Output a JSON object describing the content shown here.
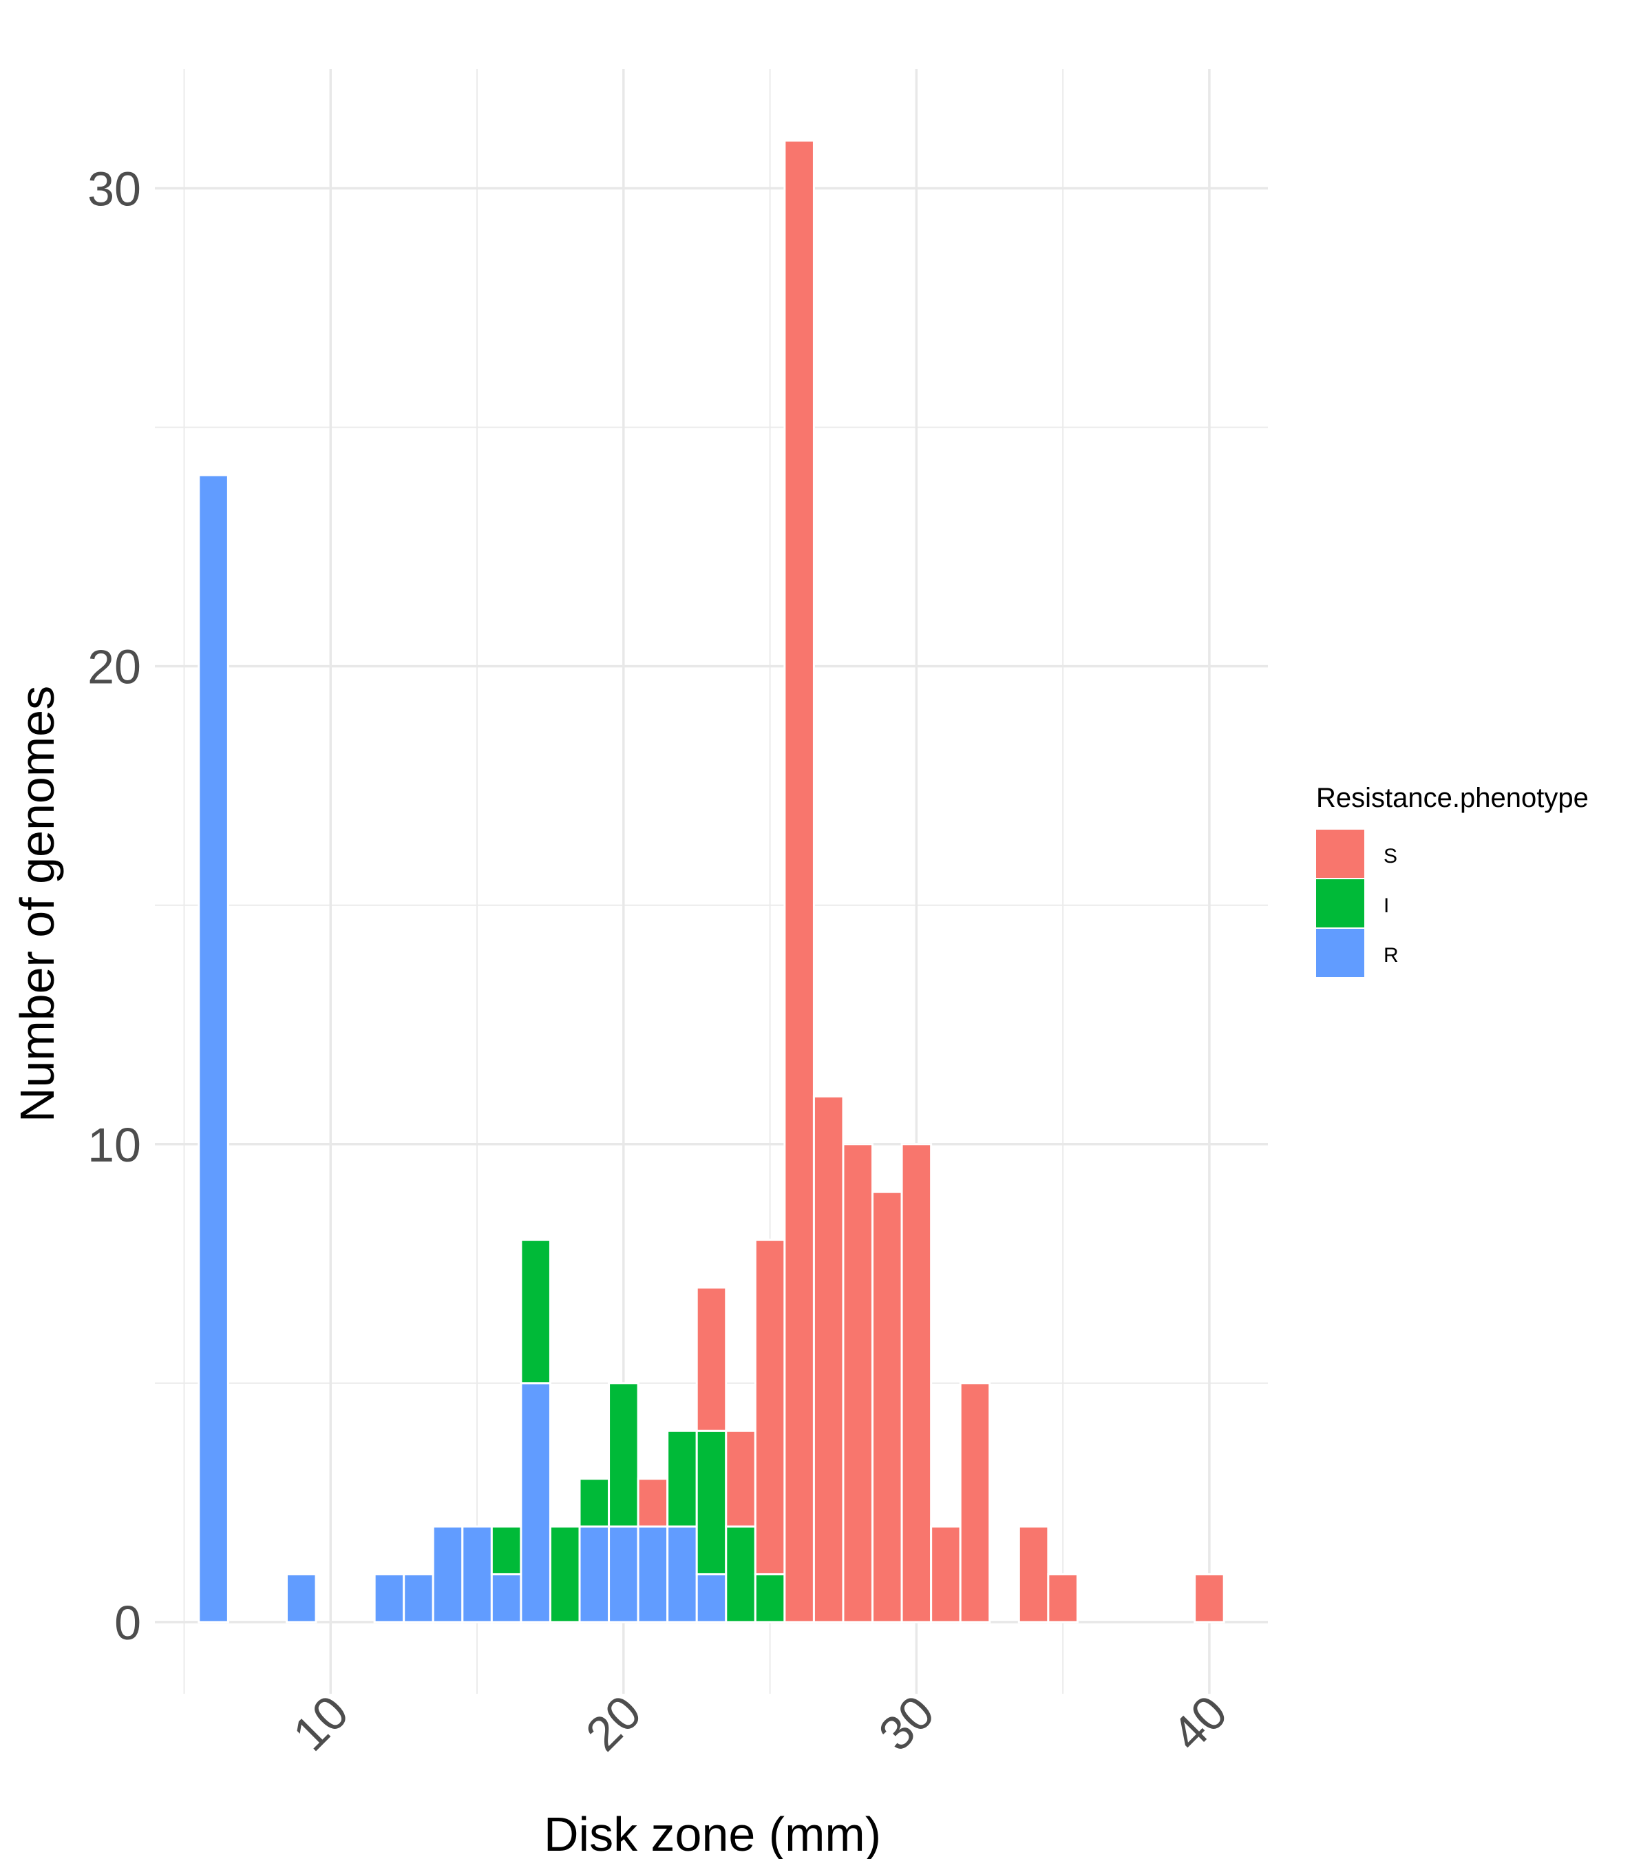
{
  "chart_data": {
    "type": "bar",
    "stacked": true,
    "xlabel": "Disk zone (mm)",
    "ylabel": "Number of genomes",
    "xlim": [
      4,
      42
    ],
    "ylim": [
      -1.5,
      32.5
    ],
    "x_ticks": [
      10,
      20,
      30,
      40
    ],
    "x_tick_labels": [
      "10",
      "20",
      "30",
      "40"
    ],
    "x_minor_grid": [
      5,
      15,
      25,
      35
    ],
    "y_ticks": [
      0,
      10,
      20,
      30
    ],
    "y_tick_labels": [
      "0",
      "10",
      "20",
      "30"
    ],
    "y_minor_grid": [
      5,
      15,
      25
    ],
    "grid": true,
    "legend": {
      "title": "Resistance.phenotype",
      "placement": "right"
    },
    "x": [
      6,
      9,
      12,
      13,
      14,
      15,
      16,
      17,
      18,
      19,
      20,
      21,
      22,
      23,
      24,
      25,
      26,
      27,
      28,
      29,
      30,
      31,
      32,
      34,
      35,
      40
    ],
    "series": [
      {
        "name": "S",
        "color": "#F8766D",
        "values": [
          0,
          0,
          0,
          0,
          0,
          0,
          0,
          0,
          0,
          0,
          0,
          1,
          0,
          3,
          2,
          7,
          31,
          11,
          10,
          9,
          10,
          2,
          5,
          2,
          1,
          1
        ]
      },
      {
        "name": "I",
        "color": "#00BA38",
        "values": [
          0,
          0,
          0,
          0,
          0,
          0,
          1,
          3,
          2,
          1,
          3,
          0,
          2,
          3,
          2,
          1,
          0,
          0,
          0,
          0,
          0,
          0,
          0,
          0,
          0,
          0
        ]
      },
      {
        "name": "R",
        "color": "#619CFF",
        "values": [
          24,
          1,
          1,
          1,
          2,
          2,
          1,
          5,
          0,
          2,
          2,
          2,
          2,
          1,
          0,
          0,
          0,
          0,
          0,
          0,
          0,
          0,
          0,
          0,
          0,
          0
        ]
      }
    ]
  }
}
